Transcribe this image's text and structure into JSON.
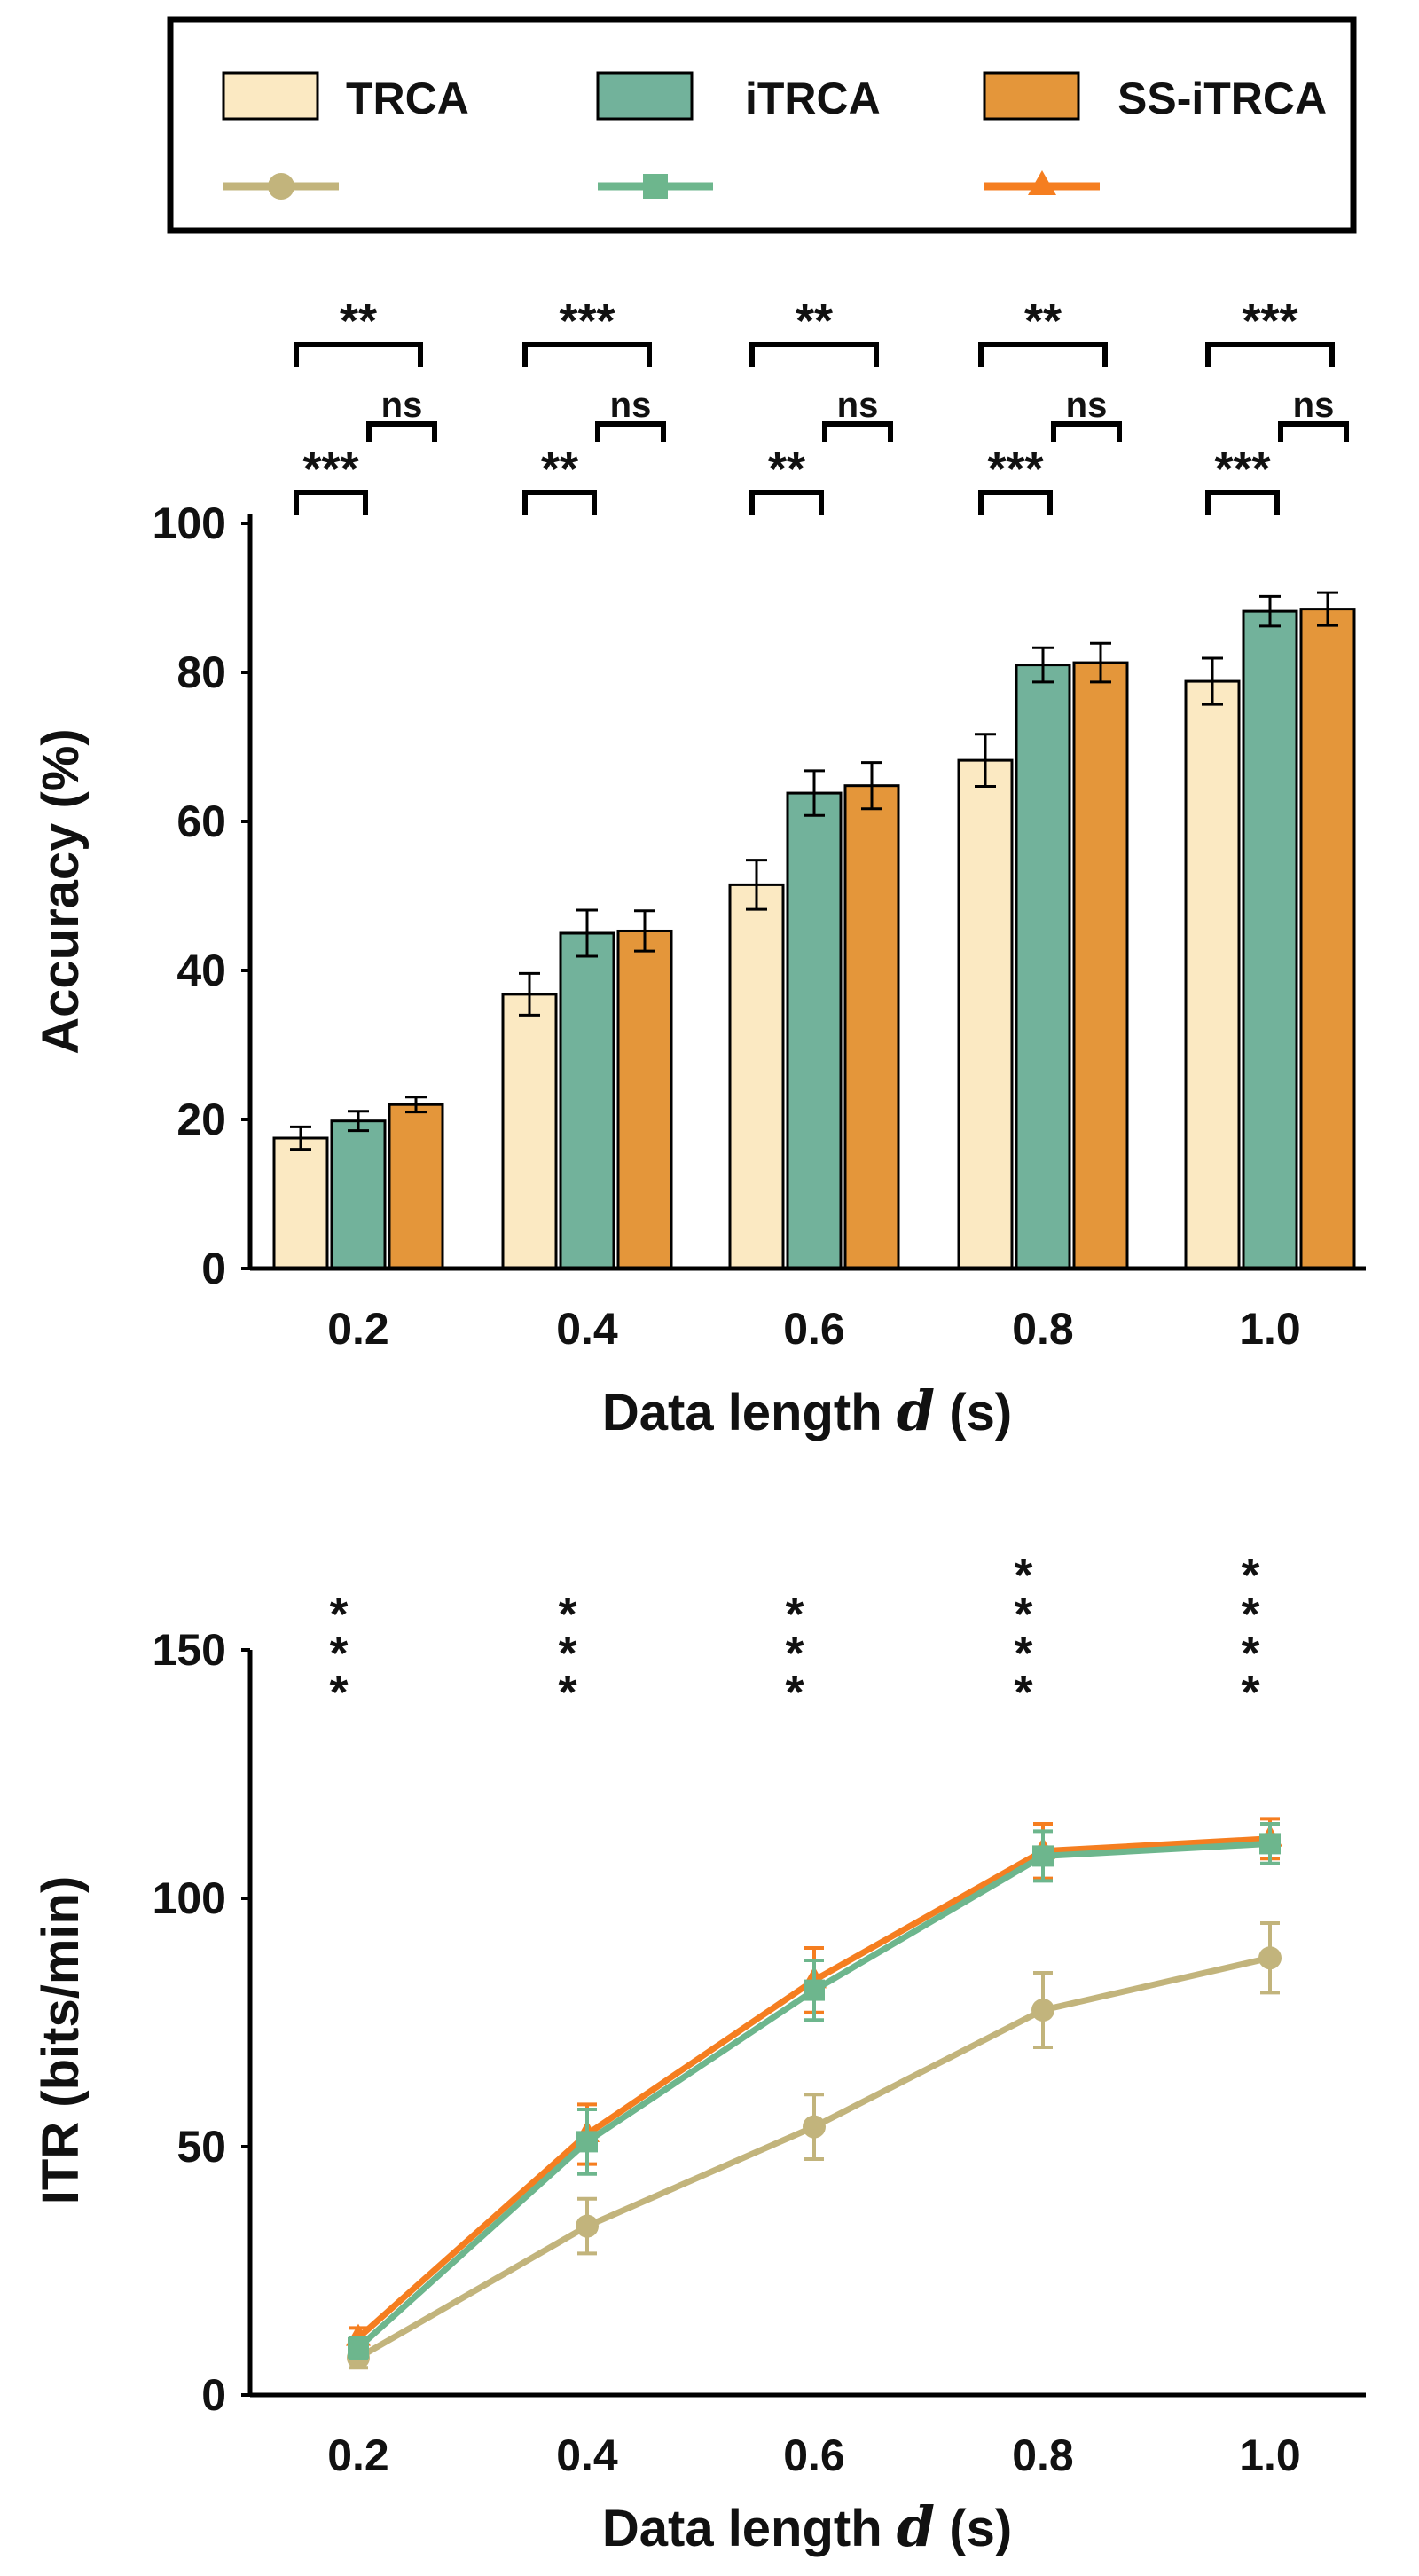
{
  "colors": {
    "TRCA": "#FBE9C2",
    "iTRCA": "#72B29B",
    "SS-iTRCA": "#E4963A",
    "TRCA_line": "#C2B47C",
    "iTRCA_line": "#6DB68D",
    "SS-iTRCA_line": "#F57E20"
  },
  "chart_data": [
    {
      "type": "bar",
      "categories": [
        "0.2",
        "0.4",
        "0.6",
        "0.8",
        "1.0"
      ],
      "series": [
        {
          "name": "TRCA",
          "values": [
            17.5,
            36.8,
            51.5,
            68.2,
            78.8
          ],
          "err": [
            1.5,
            2.8,
            3.3,
            3.5,
            3.1
          ]
        },
        {
          "name": "iTRCA",
          "values": [
            19.8,
            45.0,
            63.8,
            81.0,
            88.2
          ],
          "err": [
            1.3,
            3.1,
            3.0,
            2.3,
            2.0
          ]
        },
        {
          "name": "SS-iTRCA",
          "values": [
            22.0,
            45.3,
            64.8,
            81.3,
            88.5
          ],
          "err": [
            1.0,
            2.7,
            3.1,
            2.6,
            2.2
          ]
        }
      ],
      "ylabel": "Accuracy (%)",
      "xlabel_prefix": "Data length ",
      "xlabel_var": "d",
      "xlabel_suffix": " (s)",
      "yticks": [
        "0",
        "20",
        "40",
        "60",
        "80",
        "100"
      ],
      "ylim": [
        0,
        100
      ],
      "significance": {
        "TRCA_vs_SS-iTRCA": [
          "**",
          "***",
          "**",
          "**",
          "***"
        ],
        "iTRCA_vs_SS-iTRCA": [
          "ns",
          "ns",
          "ns",
          "ns",
          "ns"
        ],
        "TRCA_vs_iTRCA": [
          "***",
          "**",
          "**",
          "***",
          "***"
        ]
      }
    },
    {
      "type": "line",
      "x": [
        "0.2",
        "0.4",
        "0.6",
        "0.8",
        "1.0"
      ],
      "series": [
        {
          "name": "TRCA",
          "values": [
            7.5,
            34.0,
            54.0,
            77.5,
            88.0
          ],
          "err": [
            2.0,
            5.5,
            6.5,
            7.5,
            7.0
          ]
        },
        {
          "name": "iTRCA",
          "values": [
            9.5,
            51.0,
            81.5,
            108.5,
            111.0
          ],
          "err": [
            2.0,
            6.5,
            6.0,
            5.0,
            4.0
          ]
        },
        {
          "name": "SS-iTRCA",
          "values": [
            11.5,
            52.5,
            83.5,
            109.5,
            112.0
          ],
          "err": [
            2.0,
            6.0,
            6.5,
            5.5,
            4.0
          ]
        }
      ],
      "ylabel": "ITR (bits/min)",
      "xlabel_prefix": "Data length ",
      "xlabel_var": "d",
      "xlabel_suffix": " (s)",
      "yticks": [
        "0",
        "50",
        "100",
        "150"
      ],
      "ylim": [
        0,
        150
      ],
      "significance": [
        "***",
        "***",
        "***",
        "****",
        "****"
      ]
    }
  ],
  "legend": {
    "entries": [
      {
        "name": "TRCA",
        "marker": "circle"
      },
      {
        "name": "iTRCA",
        "marker": "square"
      },
      {
        "name": "SS-iTRCA",
        "marker": "triangle"
      }
    ]
  }
}
